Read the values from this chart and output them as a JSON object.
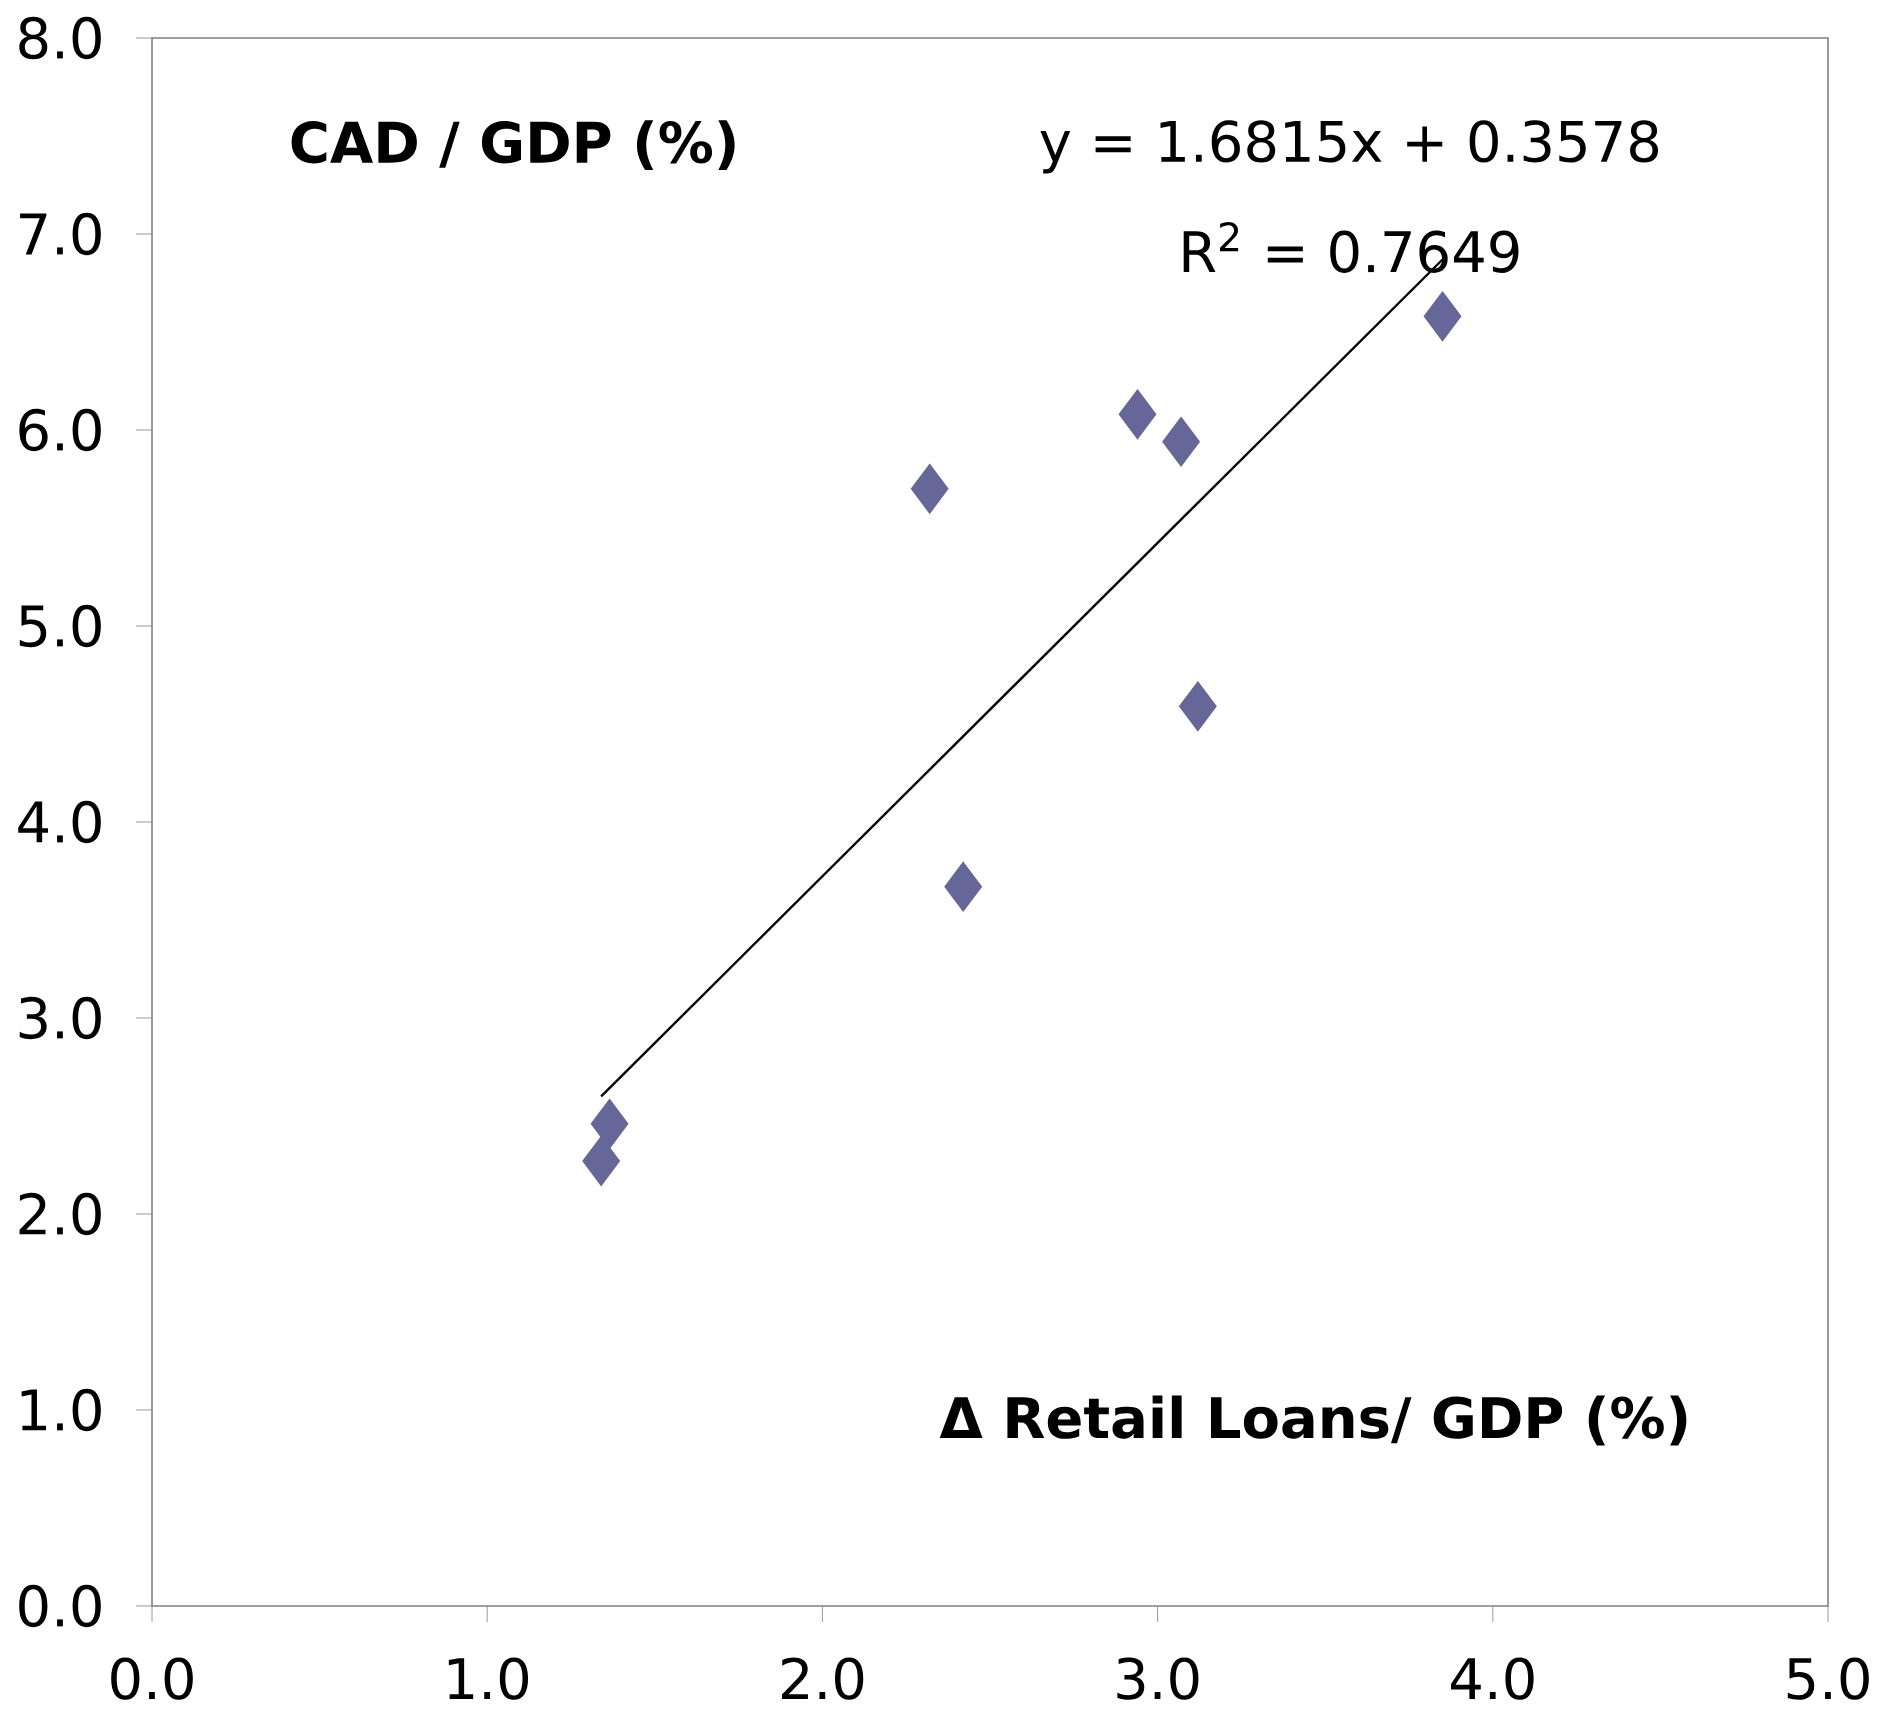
{
  "chart_data": {
    "type": "scatter",
    "xlabel": "Δ Retail Loans/ GDP (%)",
    "ylabel": "CAD / GDP (%)",
    "annotations": [
      "y = 1.6815x + 0.3578",
      "R$^{2}$ = 0.7649"
    ],
    "x": [
      1.34,
      1.365,
      2.32,
      2.42,
      2.94,
      3.07,
      3.12,
      3.85
    ],
    "series": [
      {
        "color": "#666699",
        "values": [
          2.27,
          2.46,
          5.7,
          3.67,
          6.08,
          5.94,
          4.59,
          6.58
        ]
      },
      {
        "type": "line",
        "marker": "none",
        "color": "#000000",
        "x": [
          1.34,
          3.85
        ],
        "values": [
          2.6,
          6.87
        ]
      }
    ],
    "marker": "diamond",
    "grid": false,
    "xlim": [
      0,
      5
    ],
    "ylim": [
      0,
      8
    ],
    "xticks": [
      {
        "value": 0,
        "label": "0.0"
      },
      {
        "value": 1,
        "label": "1.0"
      },
      {
        "value": 2,
        "label": "2.0"
      },
      {
        "value": 3,
        "label": "3.0"
      },
      {
        "value": 4,
        "label": "4.0"
      },
      {
        "value": 5,
        "label": "5.0"
      }
    ],
    "yticks": [
      {
        "value": 0,
        "label": "0.0"
      },
      {
        "value": 1,
        "label": "1.0"
      },
      {
        "value": 2,
        "label": "2.0"
      },
      {
        "value": 3,
        "label": "3.0"
      },
      {
        "value": 4,
        "label": "4.0"
      },
      {
        "value": 5,
        "label": "5.0"
      },
      {
        "value": 6,
        "label": "6.0"
      },
      {
        "value": 7,
        "label": "7.0"
      },
      {
        "value": 8,
        "label": "8.0"
      }
    ]
  }
}
